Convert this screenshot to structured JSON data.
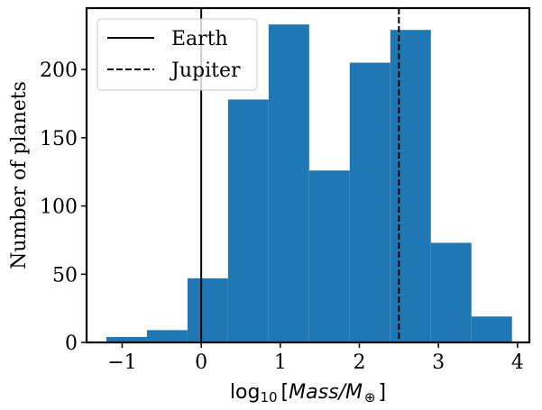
{
  "chart_data": {
    "type": "bar",
    "subtype": "histogram",
    "xlabel": "log10[Mass/M⊕]",
    "xlabel_parts": {
      "base": "log",
      "sub": "10",
      "open": "[",
      "var": "Mass/M",
      "var_sub": "⊕",
      "close": "]"
    },
    "ylabel": "Number of planets",
    "xlim": [
      -1.45,
      4.15
    ],
    "ylim": [
      0,
      245
    ],
    "xticks": [
      -1,
      0,
      1,
      2,
      3,
      4
    ],
    "xtick_labels": [
      "−1",
      "0",
      "1",
      "2",
      "3",
      "4"
    ],
    "yticks": [
      0,
      50,
      100,
      150,
      200
    ],
    "ytick_labels": [
      "0",
      "50",
      "100",
      "150",
      "200"
    ],
    "bin_edges": [
      -1.2,
      -0.687,
      -0.174,
      0.339,
      0.852,
      1.365,
      1.878,
      2.391,
      2.904,
      3.417,
      3.93
    ],
    "values": [
      4,
      9,
      47,
      178,
      233,
      126,
      205,
      229,
      73,
      19
    ],
    "bar_color": "#1f77b4",
    "reference_lines": [
      {
        "name": "Earth",
        "x": 0,
        "style": "solid"
      },
      {
        "name": "Jupiter",
        "x": 2.5,
        "style": "dashed"
      }
    ],
    "legend_position": "top-left",
    "grid": false
  }
}
